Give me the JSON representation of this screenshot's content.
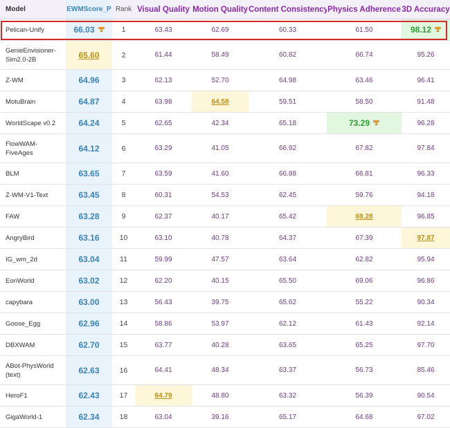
{
  "columns": {
    "model": "Model",
    "score": "EWMScore_P",
    "rank": "Rank",
    "vq": "Visual Quality",
    "mq": "Motion Quality",
    "cc": "Content Consistency",
    "pa": "Physics Adherence",
    "d3": "3D Accuracy"
  },
  "rows": [
    {
      "model": [
        "Pelican-Unify"
      ],
      "score": "66.03",
      "rank": "1",
      "vq": "63.43",
      "mq": "62.69",
      "cc": "60.33",
      "pa": "61.50",
      "d3": "98.12"
    },
    {
      "model": [
        "GenieEnvisioner-",
        "Sim2.0-2B"
      ],
      "score": "65.60",
      "rank": "2",
      "vq": "61.44",
      "mq": "58.49",
      "cc": "60.82",
      "pa": "66.74",
      "d3": "95.26"
    },
    {
      "model": [
        "Z-WM"
      ],
      "score": "64.96",
      "rank": "3",
      "vq": "62.13",
      "mq": "52.70",
      "cc": "64.98",
      "pa": "63.46",
      "d3": "96.41"
    },
    {
      "model": [
        "MotuBrain"
      ],
      "score": "64.87",
      "rank": "4",
      "vq": "63.98",
      "mq": "64.58",
      "cc": "59.51",
      "pa": "58.50",
      "d3": "91.48"
    },
    {
      "model": [
        "WorldScape v0.2"
      ],
      "score": "64.24",
      "rank": "5",
      "vq": "62.65",
      "mq": "42.34",
      "cc": "65.18",
      "pa": "73.29",
      "d3": "96.28"
    },
    {
      "model": [
        "FlowWAM-",
        "FiveAges"
      ],
      "score": "64.12",
      "rank": "6",
      "vq": "63.29",
      "mq": "41.05",
      "cc": "66.92",
      "pa": "67.82",
      "d3": "97.84"
    },
    {
      "model": [
        "BLM"
      ],
      "score": "63.65",
      "rank": "7",
      "vq": "63.59",
      "mq": "41.60",
      "cc": "66.88",
      "pa": "66.81",
      "d3": "96.33"
    },
    {
      "model": [
        "Z-WM-V1-Text"
      ],
      "score": "63.45",
      "rank": "8",
      "vq": "60.31",
      "mq": "54.53",
      "cc": "62.45",
      "pa": "59.76",
      "d3": "94.18"
    },
    {
      "model": [
        "FAW"
      ],
      "score": "63.28",
      "rank": "9",
      "vq": "62.37",
      "mq": "40.17",
      "cc": "65.42",
      "pa": "69.28",
      "d3": "96.85"
    },
    {
      "model": [
        "AngryBird"
      ],
      "score": "63.16",
      "rank": "10",
      "vq": "63.10",
      "mq": "40.78",
      "cc": "64.37",
      "pa": "67.39",
      "d3": "97.87"
    },
    {
      "model": [
        "IG_wm_2d"
      ],
      "score": "63.04",
      "rank": "11",
      "vq": "59.99",
      "mq": "47.57",
      "cc": "63.64",
      "pa": "62.82",
      "d3": "95.94"
    },
    {
      "model": [
        "EonWorld"
      ],
      "score": "63.02",
      "rank": "12",
      "vq": "62.20",
      "mq": "40.15",
      "cc": "65.50",
      "pa": "69.06",
      "d3": "96.86"
    },
    {
      "model": [
        "capybara"
      ],
      "score": "63.00",
      "rank": "13",
      "vq": "56.43",
      "mq": "39.75",
      "cc": "65.62",
      "pa": "55.22",
      "d3": "90.34"
    },
    {
      "model": [
        "Goose_Egg"
      ],
      "score": "62.96",
      "rank": "14",
      "vq": "58.86",
      "mq": "53.97",
      "cc": "62.12",
      "pa": "61.43",
      "d3": "92.14"
    },
    {
      "model": [
        "DBXWAM"
      ],
      "score": "62.70",
      "rank": "15",
      "vq": "63.77",
      "mq": "40.28",
      "cc": "63.65",
      "pa": "65.25",
      "d3": "97.70"
    },
    {
      "model": [
        "ABot-PhysWorld",
        "(text)"
      ],
      "score": "62.63",
      "rank": "16",
      "vq": "64.41",
      "mq": "48.34",
      "cc": "63.37",
      "pa": "56.73",
      "d3": "85.46"
    },
    {
      "model": [
        "HeroF1"
      ],
      "score": "62.43",
      "rank": "17",
      "vq": "64.79",
      "mq": "48.80",
      "cc": "63.32",
      "pa": "56.39",
      "d3": "90.54"
    },
    {
      "model": [
        "GigaWorld-1"
      ],
      "score": "62.34",
      "rank": "18",
      "vq": "63.04",
      "mq": "39.16",
      "cc": "65.17",
      "pa": "64.68",
      "d3": "97.02"
    }
  ],
  "highlights": {
    "best": [
      [
        0,
        "score"
      ],
      [
        0,
        "d3"
      ],
      [
        4,
        "pa"
      ]
    ],
    "second": [
      [
        1,
        "score"
      ],
      [
        3,
        "mq"
      ],
      [
        8,
        "pa"
      ],
      [
        9,
        "d3"
      ],
      [
        16,
        "vq"
      ]
    ]
  },
  "trophy_icon": "trophy-icon",
  "colors": {
    "best": "#2e9c34",
    "second": "#b89010",
    "score_column": "#3a83b6",
    "metric_text": "#6b3a80",
    "highlight_border": "#d32a2a"
  }
}
